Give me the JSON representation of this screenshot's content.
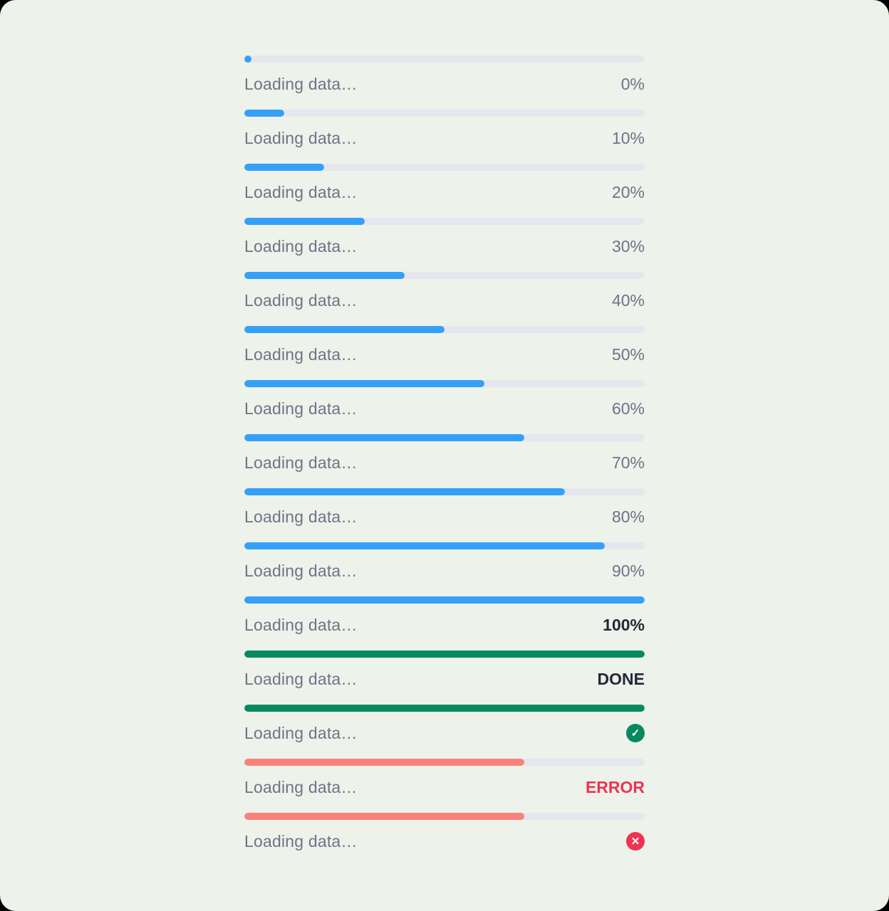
{
  "page": {
    "background": "#edf2ea",
    "corner_color": "#000000"
  },
  "colors": {
    "track": "#e7e5ee",
    "blue": "#35a0f8",
    "green": "#07895f",
    "red_fill": "#f9827c",
    "red_badge": "#ee3452",
    "label_gray": "#6e7387",
    "dark_text": "#232838",
    "error_text": "#ee3452",
    "icon_glyph_color": "#ffffff"
  },
  "items": [
    {
      "label": "Loading data…",
      "percent": 0,
      "bar": "blue",
      "status_type": "text",
      "status_text": "0%",
      "status_style": "muted"
    },
    {
      "label": "Loading data…",
      "percent": 10,
      "bar": "blue",
      "status_type": "text",
      "status_text": "10%",
      "status_style": "muted"
    },
    {
      "label": "Loading data…",
      "percent": 20,
      "bar": "blue",
      "status_type": "text",
      "status_text": "20%",
      "status_style": "muted"
    },
    {
      "label": "Loading data…",
      "percent": 30,
      "bar": "blue",
      "status_type": "text",
      "status_text": "30%",
      "status_style": "muted"
    },
    {
      "label": "Loading data…",
      "percent": 40,
      "bar": "blue",
      "status_type": "text",
      "status_text": "40%",
      "status_style": "muted"
    },
    {
      "label": "Loading data…",
      "percent": 50,
      "bar": "blue",
      "status_type": "text",
      "status_text": "50%",
      "status_style": "muted"
    },
    {
      "label": "Loading data…",
      "percent": 60,
      "bar": "blue",
      "status_type": "text",
      "status_text": "60%",
      "status_style": "muted"
    },
    {
      "label": "Loading data…",
      "percent": 70,
      "bar": "blue",
      "status_type": "text",
      "status_text": "70%",
      "status_style": "muted"
    },
    {
      "label": "Loading data…",
      "percent": 80,
      "bar": "blue",
      "status_type": "text",
      "status_text": "80%",
      "status_style": "muted"
    },
    {
      "label": "Loading data…",
      "percent": 90,
      "bar": "blue",
      "status_type": "text",
      "status_text": "90%",
      "status_style": "muted"
    },
    {
      "label": "Loading data…",
      "percent": 100,
      "bar": "blue",
      "status_type": "text",
      "status_text": "100%",
      "status_style": "dark"
    },
    {
      "label": "Loading data…",
      "percent": 100,
      "bar": "green",
      "status_type": "text",
      "status_text": "DONE",
      "status_style": "dark"
    },
    {
      "label": "Loading data…",
      "percent": 100,
      "bar": "green",
      "status_type": "icon",
      "icon": "check-icon",
      "icon_glyph": "✓",
      "icon_color": "green"
    },
    {
      "label": "Loading data…",
      "percent": 70,
      "bar": "red_fill",
      "status_type": "text",
      "status_text": "ERROR",
      "status_style": "error"
    },
    {
      "label": "Loading data…",
      "percent": 70,
      "bar": "red_fill",
      "status_type": "icon",
      "icon": "cross-icon",
      "icon_glyph": "✕",
      "icon_color": "red_badge"
    }
  ]
}
